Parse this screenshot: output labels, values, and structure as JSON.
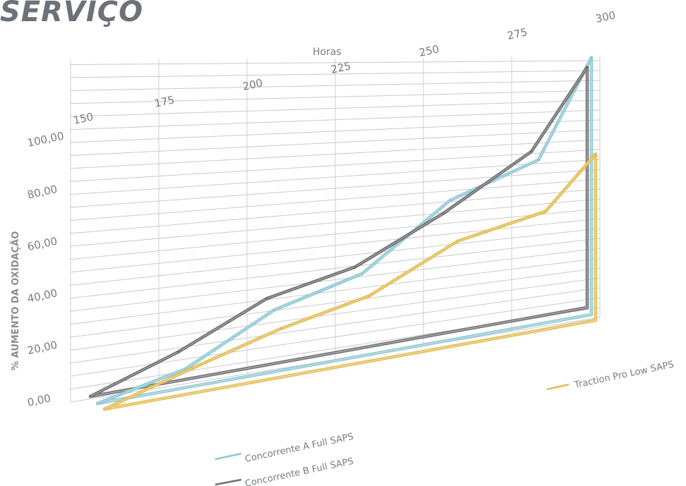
{
  "title": "SERVIÇO",
  "chart_data": {
    "type": "line",
    "title": "SERVIÇO",
    "xlabel": "Horas",
    "ylabel": "% AUMENTO DA OXIDAÇÃO",
    "x": [
      150,
      175,
      200,
      225,
      250,
      275,
      300
    ],
    "x_tick_labels": [
      "150",
      "175",
      "200",
      "225",
      "250",
      "275",
      "300"
    ],
    "y_tick_labels": [
      "0,00",
      "20,00",
      "40,00",
      "60,00",
      "80,00",
      "100,00"
    ],
    "ylim": [
      0,
      100
    ],
    "grid": true,
    "series": [
      {
        "name": "Concorrente A Full SAPS",
        "color": "#8fc8d2",
        "values": [
          0,
          8,
          27,
          38,
          67,
          83,
          132
        ]
      },
      {
        "name": "Concorrente B Full SAPS",
        "color": "#6f6f72",
        "values": [
          2,
          14,
          31,
          40,
          60,
          86,
          126
        ]
      },
      {
        "name": "Traction Pro Low SAPS",
        "color": "#e2bd52",
        "values": [
          0,
          9,
          20,
          29,
          49,
          59,
          84
        ]
      }
    ],
    "legend": "bottom"
  }
}
